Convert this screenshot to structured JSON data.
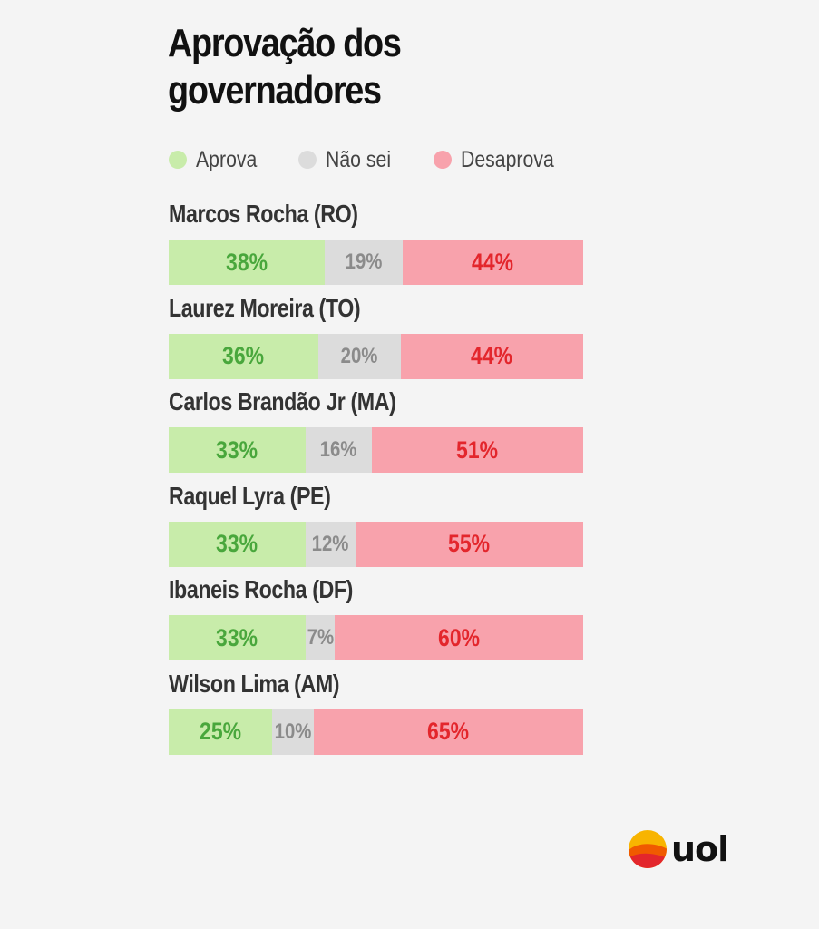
{
  "chart_data": {
    "type": "bar",
    "orientation": "horizontal",
    "stacked": true,
    "title": "Aprovação dos governadores",
    "legend_position": "top-left",
    "grid": false,
    "legend": [
      {
        "key": "aprova",
        "label": "Aprova",
        "color": "#c8ecaa",
        "text_color": "#49a73c"
      },
      {
        "key": "naosei",
        "label": "Não sei",
        "color": "#dcdcdc",
        "text_color": "#8b8b8b"
      },
      {
        "key": "desaprova",
        "label": "Desaprova",
        "color": "#f8a2ac",
        "text_color": "#e3262c"
      }
    ],
    "categories": [
      "Marcos Rocha (RO)",
      "Laurez Moreira (TO)",
      "Carlos Brandão Jr (MA)",
      "Raquel Lyra (PE)",
      "Ibaneis Rocha (DF)",
      "Wilson Lima (AM)"
    ],
    "series": [
      {
        "key": "aprova",
        "name": "Aprova",
        "values": [
          38,
          36,
          33,
          33,
          33,
          25
        ],
        "labels": [
          "38%",
          "36%",
          "33%",
          "33%",
          "33%",
          "25%"
        ]
      },
      {
        "key": "naosei",
        "name": "Não sei",
        "values": [
          19,
          20,
          16,
          12,
          7,
          10
        ],
        "labels": [
          "19%",
          "20%",
          "16%",
          "12%",
          "7%",
          "10%"
        ]
      },
      {
        "key": "desaprova",
        "name": "Desaprova",
        "values": [
          44,
          44,
          51,
          55,
          60,
          65
        ],
        "labels": [
          "44%",
          "44%",
          "51%",
          "55%",
          "60%",
          "65%"
        ]
      }
    ]
  },
  "brand": {
    "name": "uol",
    "logo_icon": "uol-sun-icon",
    "logo_colors": [
      "#f8b400",
      "#f05a00",
      "#e3262c"
    ]
  }
}
